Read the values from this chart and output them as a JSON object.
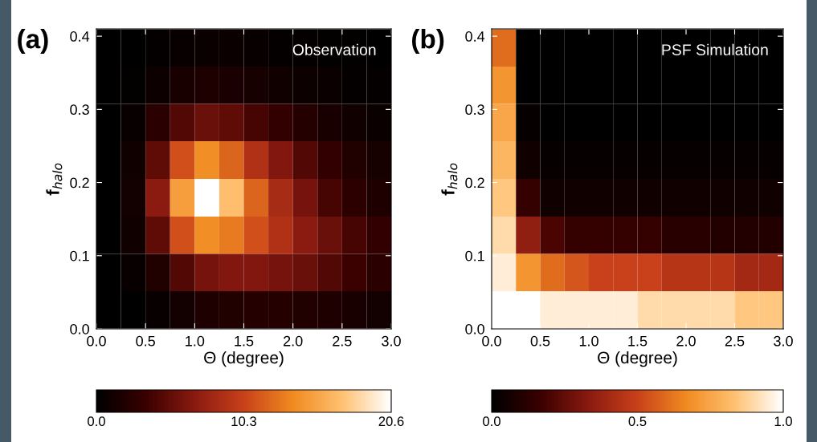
{
  "chart_data": [
    {
      "type": "heatmap",
      "title": "(a)",
      "annotations": [
        "Observation"
      ],
      "xlabel": "Θ (degree)",
      "ylabel": "f$_{halo}$",
      "x": [
        0.125,
        0.375,
        0.625,
        0.875,
        1.125,
        1.375,
        1.625,
        1.875,
        2.125,
        2.375,
        2.625,
        2.875
      ],
      "y": [
        0.384,
        0.333,
        0.282,
        0.231,
        0.179,
        0.128,
        0.077,
        0.026
      ],
      "xlim": [
        0,
        3
      ],
      "ylim": [
        0,
        0.41
      ],
      "xticks": [
        {
          "value": 0,
          "label": "0.0"
        },
        {
          "value": 0.5,
          "label": "0.5"
        },
        {
          "value": 1,
          "label": "1.0"
        },
        {
          "value": 1.5,
          "label": "1.5"
        },
        {
          "value": 2,
          "label": "2.0"
        },
        {
          "value": 2.5,
          "label": "2.5"
        },
        {
          "value": 3,
          "label": "3.0"
        }
      ],
      "yticks": [
        {
          "value": 0,
          "label": "0.0"
        },
        {
          "value": 0.1,
          "label": "0.1"
        },
        {
          "value": 0.2,
          "label": "0.2"
        },
        {
          "value": 0.3,
          "label": "0.3"
        },
        {
          "value": 0.4,
          "label": "0.4"
        }
      ],
      "clim": [
        0,
        20.6
      ],
      "cticks": [
        {
          "value": 0,
          "label": "0.0"
        },
        {
          "value": 10.3,
          "label": "10.3"
        },
        {
          "value": 20.6,
          "label": "20.6"
        }
      ],
      "cells": [
        [
          0,
          0,
          0.3,
          0.5,
          0.6,
          0.6,
          0.5,
          0.4,
          0.3,
          0.2,
          0.2,
          0.1
        ],
        [
          0,
          0.2,
          0.8,
          1.5,
          1.8,
          1.6,
          1.3,
          1,
          0.8,
          0.6,
          0.4,
          0.3
        ],
        [
          0,
          0.5,
          2.5,
          4.5,
          5.5,
          5,
          4,
          3,
          2.2,
          1.5,
          1,
          0.7
        ],
        [
          0,
          1,
          5,
          11,
          14,
          12,
          9,
          6.5,
          4.5,
          3,
          2,
          1.3
        ],
        [
          0,
          1.2,
          7,
          15,
          20.6,
          17,
          12,
          8.5,
          6,
          4,
          2.7,
          1.8
        ],
        [
          0,
          1,
          5,
          11,
          14,
          13,
          11,
          9,
          7,
          5.5,
          4,
          3
        ],
        [
          0,
          0.5,
          2,
          4.5,
          6,
          6.5,
          6.5,
          6,
          5.5,
          4.5,
          3.5,
          2.5
        ],
        [
          0,
          0.1,
          0.5,
          1.2,
          1.8,
          2,
          2.2,
          2.2,
          2,
          1.8,
          1.5,
          1.2
        ]
      ]
    },
    {
      "type": "heatmap",
      "title": "(b)",
      "annotations": [
        "PSF Simulation"
      ],
      "xlabel": "Θ (degree)",
      "ylabel": "f$_{halo}$",
      "x": [
        0.125,
        0.375,
        0.625,
        0.875,
        1.125,
        1.375,
        1.625,
        1.875,
        2.125,
        2.375,
        2.625,
        2.875
      ],
      "y": [
        0.384,
        0.333,
        0.282,
        0.231,
        0.179,
        0.128,
        0.077,
        0.026
      ],
      "xlim": [
        0,
        3
      ],
      "ylim": [
        0,
        0.41
      ],
      "xticks": [
        {
          "value": 0,
          "label": "0.0"
        },
        {
          "value": 0.5,
          "label": "0.5"
        },
        {
          "value": 1,
          "label": "1.0"
        },
        {
          "value": 1.5,
          "label": "1.5"
        },
        {
          "value": 2,
          "label": "2.0"
        },
        {
          "value": 2.5,
          "label": "2.5"
        },
        {
          "value": 3,
          "label": "3.0"
        }
      ],
      "yticks": [
        {
          "value": 0,
          "label": "0.0"
        },
        {
          "value": 0.1,
          "label": "0.1"
        },
        {
          "value": 0.2,
          "label": "0.2"
        },
        {
          "value": 0.3,
          "label": "0.3"
        },
        {
          "value": 0.4,
          "label": "0.4"
        }
      ],
      "clim": [
        0,
        1
      ],
      "cticks": [
        {
          "value": 0,
          "label": "0.0"
        },
        {
          "value": 0.5,
          "label": "0.5"
        },
        {
          "value": 1,
          "label": "1.0"
        }
      ],
      "cells": [
        [
          0.6,
          0,
          0,
          0,
          0,
          0,
          0,
          0,
          0,
          0,
          0,
          0
        ],
        [
          0.7,
          0,
          0,
          0,
          0,
          0,
          0,
          0,
          0,
          0,
          0,
          0
        ],
        [
          0.75,
          0.02,
          0,
          0,
          0,
          0,
          0,
          0,
          0,
          0,
          0,
          0
        ],
        [
          0.8,
          0.05,
          0.02,
          0.02,
          0.02,
          0.02,
          0.02,
          0.02,
          0.02,
          0.02,
          0.02,
          0.02
        ],
        [
          0.85,
          0.15,
          0.05,
          0.05,
          0.05,
          0.05,
          0.05,
          0.05,
          0.05,
          0.05,
          0.05,
          0.05
        ],
        [
          0.9,
          0.35,
          0.2,
          0.15,
          0.15,
          0.15,
          0.15,
          0.12,
          0.12,
          0.1,
          0.1,
          0.1
        ],
        [
          0.95,
          0.7,
          0.6,
          0.55,
          0.5,
          0.5,
          0.5,
          0.45,
          0.45,
          0.45,
          0.4,
          0.4
        ],
        [
          1,
          1,
          0.95,
          0.95,
          0.95,
          0.95,
          0.9,
          0.9,
          0.9,
          0.9,
          0.85,
          0.85
        ]
      ]
    }
  ]
}
